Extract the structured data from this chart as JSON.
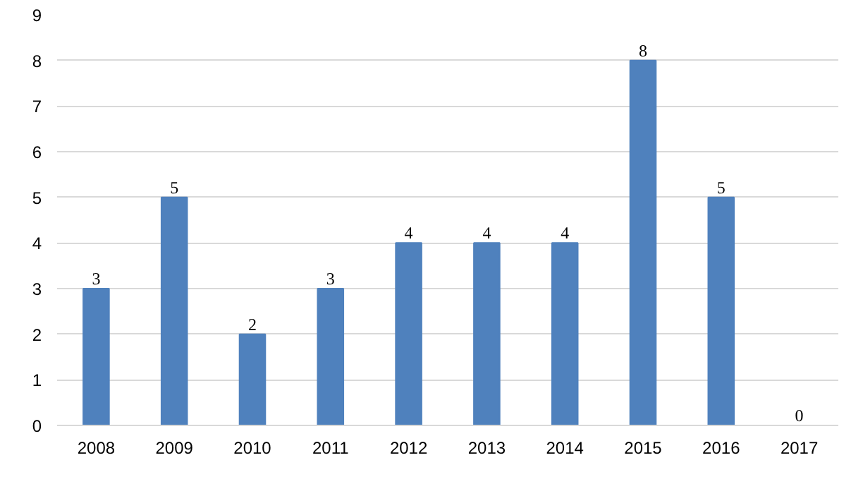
{
  "chart_data": {
    "type": "bar",
    "categories": [
      "2008",
      "2009",
      "2010",
      "2011",
      "2012",
      "2013",
      "2014",
      "2015",
      "2016",
      "2017"
    ],
    "values": [
      3,
      5,
      2,
      3,
      4,
      4,
      4,
      8,
      5,
      0
    ],
    "color": "#4f81bd",
    "ylim": [
      0,
      9
    ],
    "yticks": [
      0,
      1,
      2,
      3,
      4,
      5,
      6,
      7,
      8,
      9
    ],
    "grid": "y",
    "data_labels": true
  }
}
